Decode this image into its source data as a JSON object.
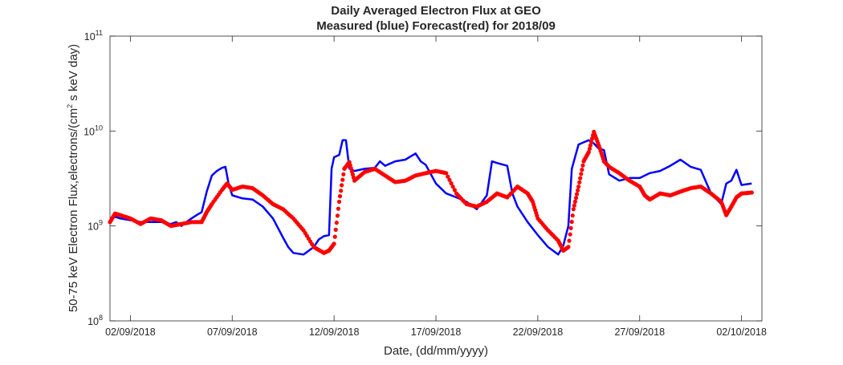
{
  "chart_data": {
    "type": "line",
    "title": "Daily Averaged Electron Flux at GEO",
    "subtitle": "Measured (blue) Forecast(red) for 2018/09",
    "xlabel": "Date, (dd/mm/yyyy)",
    "ylabel": "50-75 keV Electron Flux,electrons/(cm² s keV day)",
    "ylabel_parts": [
      "50-75 keV Electron Flux,electrons/(cm",
      "2",
      " s keV day)"
    ],
    "yscale": "log",
    "ylim": [
      100000000,
      100000000000
    ],
    "xlim": [
      "2018-09-01",
      "2018-10-03"
    ],
    "grid": false,
    "x_ticks": [
      {
        "date": "2018-09-02",
        "label": "02/09/2018"
      },
      {
        "date": "2018-09-07",
        "label": "07/09/2018"
      },
      {
        "date": "2018-09-12",
        "label": "12/09/2018"
      },
      {
        "date": "2018-09-17",
        "label": "17/09/2018"
      },
      {
        "date": "2018-09-22",
        "label": "22/09/2018"
      },
      {
        "date": "2018-09-27",
        "label": "27/09/2018"
      },
      {
        "date": "2018-10-02",
        "label": "02/10/2018"
      }
    ],
    "y_ticks": [
      {
        "value": 100000000,
        "base": "10",
        "exp": "8"
      },
      {
        "value": 1000000000,
        "base": "10",
        "exp": "9"
      },
      {
        "value": 10000000000,
        "base": "10",
        "exp": "10"
      },
      {
        "value": 100000000000,
        "base": "10",
        "exp": "11"
      }
    ],
    "series": [
      {
        "name": "Measured",
        "color": "#0000ff",
        "style": "line",
        "points": [
          [
            "2018-09-01 00:00",
            1200000000.0
          ],
          [
            "2018-09-01 06:00",
            1250000000.0
          ],
          [
            "2018-09-01 12:00",
            1200000000.0
          ],
          [
            "2018-09-02 00:00",
            1150000000.0
          ],
          [
            "2018-09-02 12:00",
            1100000000.0
          ],
          [
            "2018-09-03 00:00",
            1100000000.0
          ],
          [
            "2018-09-03 12:00",
            1100000000.0
          ],
          [
            "2018-09-04 00:00",
            1050000000.0
          ],
          [
            "2018-09-04 06:00",
            1100000000.0
          ],
          [
            "2018-09-04 12:00",
            1000000000.0
          ],
          [
            "2018-09-04 18:00",
            1100000000.0
          ],
          [
            "2018-09-05 00:00",
            1200000000.0
          ],
          [
            "2018-09-05 06:00",
            1300000000.0
          ],
          [
            "2018-09-05 12:00",
            1400000000.0
          ],
          [
            "2018-09-05 18:00",
            2300000000.0
          ],
          [
            "2018-09-06 00:00",
            3400000000.0
          ],
          [
            "2018-09-06 06:00",
            3800000000.0
          ],
          [
            "2018-09-06 12:00",
            4100000000.0
          ],
          [
            "2018-09-06 16:00",
            4200000000.0
          ],
          [
            "2018-09-06 20:00",
            2700000000.0
          ],
          [
            "2018-09-07 00:00",
            2100000000.0
          ],
          [
            "2018-09-07 12:00",
            1950000000.0
          ],
          [
            "2018-09-08 00:00",
            1900000000.0
          ],
          [
            "2018-09-08 12:00",
            1600000000.0
          ],
          [
            "2018-09-09 00:00",
            1200000000.0
          ],
          [
            "2018-09-09 06:00",
            950000000.0
          ],
          [
            "2018-09-09 12:00",
            750000000.0
          ],
          [
            "2018-09-09 18:00",
            600000000.0
          ],
          [
            "2018-09-10 00:00",
            520000000.0
          ],
          [
            "2018-09-10 12:00",
            500000000.0
          ],
          [
            "2018-09-11 00:00",
            600000000.0
          ],
          [
            "2018-09-11 06:00",
            720000000.0
          ],
          [
            "2018-09-11 12:00",
            780000000.0
          ],
          [
            "2018-09-11 18:00",
            800000000.0
          ],
          [
            "2018-09-11 21:00",
            4000000000.0
          ],
          [
            "2018-09-12 00:00",
            5300000000.0
          ],
          [
            "2018-09-12 06:00",
            5600000000.0
          ],
          [
            "2018-09-12 10:00",
            8000000000.0
          ],
          [
            "2018-09-12 14:00",
            8000000000.0
          ],
          [
            "2018-09-12 18:00",
            4000000000.0
          ],
          [
            "2018-09-13 00:00",
            3800000000.0
          ],
          [
            "2018-09-13 12:00",
            4000000000.0
          ],
          [
            "2018-09-14 00:00",
            4100000000.0
          ],
          [
            "2018-09-14 06:00",
            4800000000.0
          ],
          [
            "2018-09-14 12:00",
            4300000000.0
          ],
          [
            "2018-09-15 00:00",
            4800000000.0
          ],
          [
            "2018-09-15 12:00",
            5000000000.0
          ],
          [
            "2018-09-16 00:00",
            5800000000.0
          ],
          [
            "2018-09-16 06:00",
            4800000000.0
          ],
          [
            "2018-09-16 12:00",
            4400000000.0
          ],
          [
            "2018-09-17 00:00",
            2800000000.0
          ],
          [
            "2018-09-17 12:00",
            2200000000.0
          ],
          [
            "2018-09-18 00:00",
            2000000000.0
          ],
          [
            "2018-09-18 12:00",
            1800000000.0
          ],
          [
            "2018-09-19 00:00",
            1500000000.0
          ],
          [
            "2018-09-19 12:00",
            2100000000.0
          ],
          [
            "2018-09-19 18:00",
            4800000000.0
          ],
          [
            "2018-09-20 00:00",
            4600000000.0
          ],
          [
            "2018-09-20 12:00",
            4300000000.0
          ],
          [
            "2018-09-20 18:00",
            2200000000.0
          ],
          [
            "2018-09-21 00:00",
            1600000000.0
          ],
          [
            "2018-09-21 12:00",
            1100000000.0
          ],
          [
            "2018-09-22 00:00",
            800000000.0
          ],
          [
            "2018-09-22 12:00",
            600000000.0
          ],
          [
            "2018-09-23 00:00",
            500000000.0
          ],
          [
            "2018-09-23 06:00",
            620000000.0
          ],
          [
            "2018-09-23 12:00",
            1000000000.0
          ],
          [
            "2018-09-23 16:00",
            4000000000.0
          ],
          [
            "2018-09-24 00:00",
            7200000000.0
          ],
          [
            "2018-09-24 06:00",
            7600000000.0
          ],
          [
            "2018-09-24 12:00",
            8000000000.0
          ],
          [
            "2018-09-24 18:00",
            7400000000.0
          ],
          [
            "2018-09-25 00:00",
            6500000000.0
          ],
          [
            "2018-09-25 06:00",
            6300000000.0
          ],
          [
            "2018-09-25 12:00",
            3500000000.0
          ],
          [
            "2018-09-26 00:00",
            3000000000.0
          ],
          [
            "2018-09-26 12:00",
            3200000000.0
          ],
          [
            "2018-09-27 00:00",
            3200000000.0
          ],
          [
            "2018-09-27 12:00",
            3600000000.0
          ],
          [
            "2018-09-28 00:00",
            3800000000.0
          ],
          [
            "2018-09-28 12:00",
            4300000000.0
          ],
          [
            "2018-09-29 00:00",
            5000000000.0
          ],
          [
            "2018-09-29 12:00",
            4200000000.0
          ],
          [
            "2018-09-30 00:00",
            3900000000.0
          ],
          [
            "2018-09-30 12:00",
            2200000000.0
          ],
          [
            "2018-10-01 00:00",
            1700000000.0
          ],
          [
            "2018-10-01 06:00",
            2800000000.0
          ],
          [
            "2018-10-01 12:00",
            3000000000.0
          ],
          [
            "2018-10-01 18:00",
            3900000000.0
          ],
          [
            "2018-10-02 00:00",
            2700000000.0
          ],
          [
            "2018-10-02 12:00",
            2800000000.0
          ]
        ]
      },
      {
        "name": "Forecast",
        "color": "#ff0000",
        "style": "dots",
        "points": [
          [
            "2018-09-01 00:00",
            1100000000.0
          ],
          [
            "2018-09-01 06:00",
            1350000000.0
          ],
          [
            "2018-09-01 12:00",
            1300000000.0
          ],
          [
            "2018-09-02 00:00",
            1200000000.0
          ],
          [
            "2018-09-02 12:00",
            1050000000.0
          ],
          [
            "2018-09-03 00:00",
            1200000000.0
          ],
          [
            "2018-09-03 12:00",
            1150000000.0
          ],
          [
            "2018-09-04 00:00",
            1000000000.0
          ],
          [
            "2018-09-04 12:00",
            1050000000.0
          ],
          [
            "2018-09-05 00:00",
            1100000000.0
          ],
          [
            "2018-09-05 12:00",
            1100000000.0
          ],
          [
            "2018-09-05 18:00",
            1400000000.0
          ],
          [
            "2018-09-06 00:00",
            1700000000.0
          ],
          [
            "2018-09-06 12:00",
            2400000000.0
          ],
          [
            "2018-09-06 18:00",
            2800000000.0
          ],
          [
            "2018-09-07 00:00",
            2400000000.0
          ],
          [
            "2018-09-07 12:00",
            2600000000.0
          ],
          [
            "2018-09-08 00:00",
            2500000000.0
          ],
          [
            "2018-09-08 12:00",
            2100000000.0
          ],
          [
            "2018-09-09 00:00",
            1700000000.0
          ],
          [
            "2018-09-09 12:00",
            1500000000.0
          ],
          [
            "2018-09-10 00:00",
            1200000000.0
          ],
          [
            "2018-09-10 12:00",
            900000000.0
          ],
          [
            "2018-09-11 00:00",
            600000000.0
          ],
          [
            "2018-09-11 12:00",
            520000000.0
          ],
          [
            "2018-09-11 18:00",
            550000000.0
          ],
          [
            "2018-09-12 00:00",
            650000000.0
          ],
          [
            "2018-09-12 06:00",
            1800000000.0
          ],
          [
            "2018-09-12 12:00",
            4000000000.0
          ],
          [
            "2018-09-12 18:00",
            4700000000.0
          ],
          [
            "2018-09-13 00:00",
            3000000000.0
          ],
          [
            "2018-09-13 12:00",
            3700000000.0
          ],
          [
            "2018-09-14 00:00",
            4000000000.0
          ],
          [
            "2018-09-14 12:00",
            3400000000.0
          ],
          [
            "2018-09-15 00:00",
            2900000000.0
          ],
          [
            "2018-09-15 12:00",
            3000000000.0
          ],
          [
            "2018-09-16 00:00",
            3400000000.0
          ],
          [
            "2018-09-16 12:00",
            3600000000.0
          ],
          [
            "2018-09-17 00:00",
            3800000000.0
          ],
          [
            "2018-09-17 12:00",
            3600000000.0
          ],
          [
            "2018-09-18 00:00",
            2200000000.0
          ],
          [
            "2018-09-18 12:00",
            1700000000.0
          ],
          [
            "2018-09-19 00:00",
            1600000000.0
          ],
          [
            "2018-09-19 12:00",
            1800000000.0
          ],
          [
            "2018-09-20 00:00",
            2200000000.0
          ],
          [
            "2018-09-20 12:00",
            2000000000.0
          ],
          [
            "2018-09-21 00:00",
            2600000000.0
          ],
          [
            "2018-09-21 12:00",
            2200000000.0
          ],
          [
            "2018-09-21 18:00",
            1800000000.0
          ],
          [
            "2018-09-22 00:00",
            1200000000.0
          ],
          [
            "2018-09-22 12:00",
            900000000.0
          ],
          [
            "2018-09-23 00:00",
            700000000.0
          ],
          [
            "2018-09-23 06:00",
            550000000.0
          ],
          [
            "2018-09-23 12:00",
            600000000.0
          ],
          [
            "2018-09-23 18:00",
            1500000000.0
          ],
          [
            "2018-09-24 00:00",
            2600000000.0
          ],
          [
            "2018-09-24 06:00",
            4800000000.0
          ],
          [
            "2018-09-24 12:00",
            6000000000.0
          ],
          [
            "2018-09-24 18:00",
            9800000000.0
          ],
          [
            "2018-09-25 00:00",
            7000000000.0
          ],
          [
            "2018-09-25 06:00",
            4800000000.0
          ],
          [
            "2018-09-25 12:00",
            4200000000.0
          ],
          [
            "2018-09-26 00:00",
            3600000000.0
          ],
          [
            "2018-09-26 12:00",
            3000000000.0
          ],
          [
            "2018-09-27 00:00",
            2600000000.0
          ],
          [
            "2018-09-27 06:00",
            2100000000.0
          ],
          [
            "2018-09-27 12:00",
            1900000000.0
          ],
          [
            "2018-09-28 00:00",
            2200000000.0
          ],
          [
            "2018-09-28 12:00",
            2100000000.0
          ],
          [
            "2018-09-29 00:00",
            2300000000.0
          ],
          [
            "2018-09-29 12:00",
            2500000000.0
          ],
          [
            "2018-09-30 00:00",
            2600000000.0
          ],
          [
            "2018-09-30 12:00",
            2200000000.0
          ],
          [
            "2018-10-01 00:00",
            1800000000.0
          ],
          [
            "2018-10-01 06:00",
            1300000000.0
          ],
          [
            "2018-10-01 12:00",
            1600000000.0
          ],
          [
            "2018-10-01 18:00",
            2000000000.0
          ],
          [
            "2018-10-02 00:00",
            2200000000.0
          ],
          [
            "2018-10-02 12:00",
            2250000000.0
          ]
        ]
      }
    ]
  }
}
